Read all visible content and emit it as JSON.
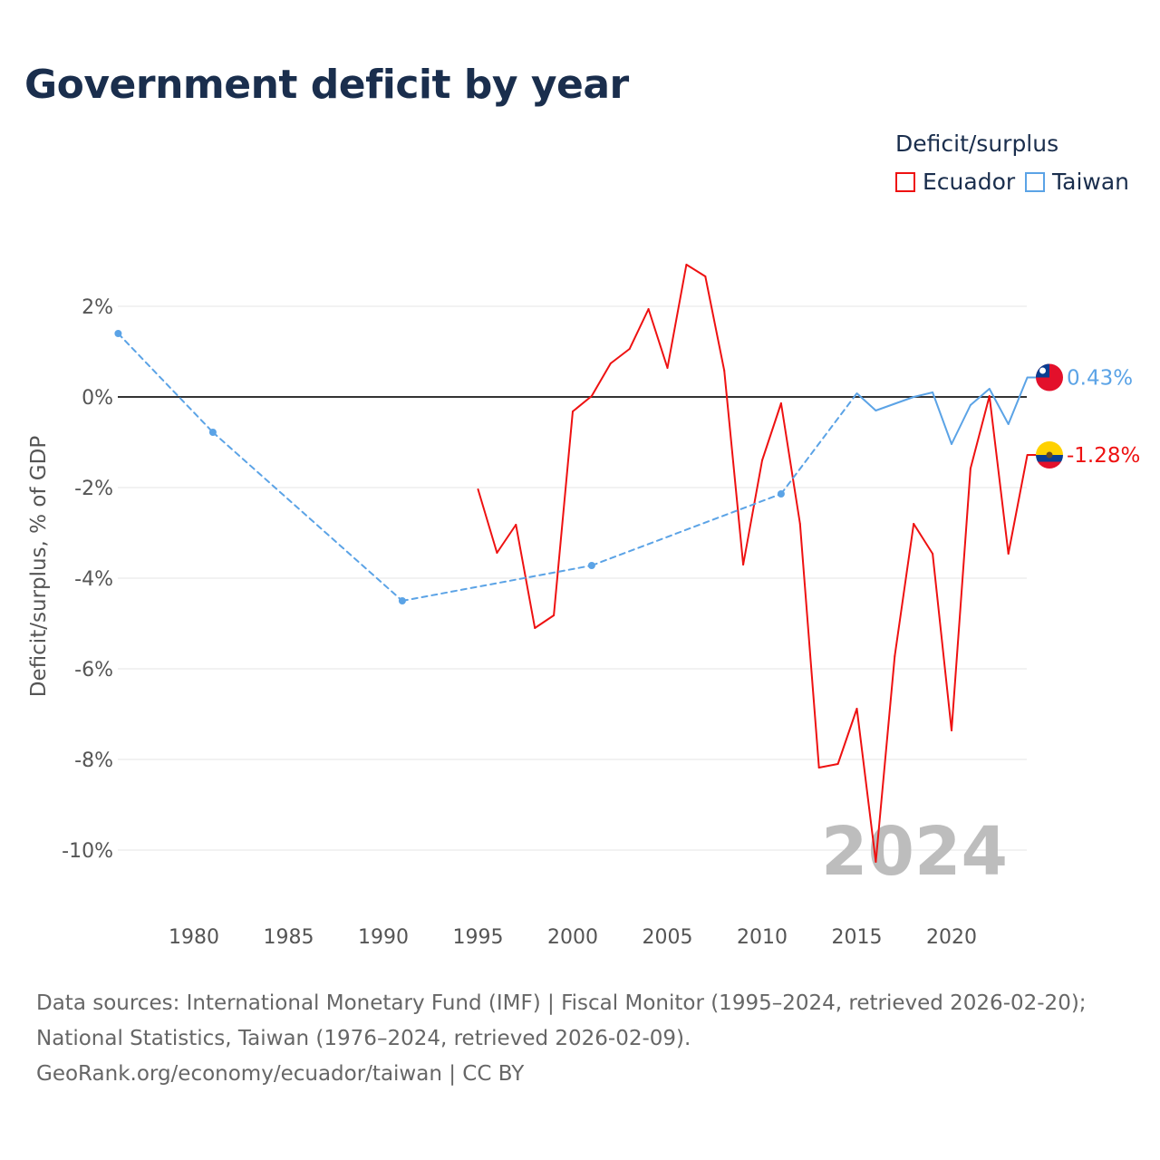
{
  "title": "Government deficit by year",
  "legend": {
    "title": "Deficit/surplus",
    "entries": [
      {
        "name": "Ecuador",
        "color": "#ee1111"
      },
      {
        "name": "Taiwan",
        "color": "#5ba3e6"
      }
    ]
  },
  "watermark_year": "2024",
  "footer": {
    "line1": "Data sources: International Monetary Fund (IMF) | Fiscal Monitor (1995–2024, retrieved 2026-02-20);",
    "line2": "National Statistics, Taiwan (1976–2024, retrieved 2026-02-09).",
    "line3": "GeoRank.org/economy/ecuador/taiwan | CC BY"
  },
  "chart_data": {
    "type": "line",
    "title": "Government deficit by year",
    "xlabel": "",
    "ylabel": "Deficit/surplus, % of GDP",
    "xlim": [
      1976,
      2024
    ],
    "ylim": [
      -10.9,
      3.6
    ],
    "xticks": [
      1980,
      1985,
      1990,
      1995,
      2000,
      2005,
      2010,
      2015,
      2020
    ],
    "yticks": [
      2,
      0,
      -2,
      -4,
      -6,
      -8,
      -10
    ],
    "ytick_labels": [
      "2%",
      "0%",
      "-2%",
      "-4%",
      "-6%",
      "-8%",
      "-10%"
    ],
    "grid": true,
    "legend_position": "top-right",
    "series": [
      {
        "name": "Ecuador",
        "color": "#ee1111",
        "end_label": "-1.28%",
        "x": [
          1995,
          1996,
          1997,
          1998,
          1999,
          2000,
          2001,
          2002,
          2003,
          2004,
          2005,
          2006,
          2007,
          2008,
          2009,
          2010,
          2011,
          2012,
          2013,
          2014,
          2015,
          2016,
          2017,
          2018,
          2019,
          2020,
          2021,
          2022,
          2023,
          2024
        ],
        "y": [
          -2.04,
          -3.44,
          -2.82,
          -5.1,
          -4.82,
          -0.32,
          0.02,
          0.74,
          1.06,
          1.94,
          0.64,
          2.92,
          2.66,
          0.58,
          -3.7,
          -1.4,
          -0.14,
          -2.8,
          -8.18,
          -8.1,
          -6.88,
          -10.26,
          -5.72,
          -2.8,
          -3.46,
          -7.36,
          -1.58,
          0.02,
          -3.46,
          -1.28
        ]
      },
      {
        "name": "Taiwan",
        "color": "#5ba3e6",
        "end_label": "0.43%",
        "x": [
          1976,
          1981,
          1991,
          2001,
          2011,
          2015,
          2016,
          2017,
          2018,
          2019,
          2020,
          2021,
          2022,
          2023,
          2024
        ],
        "y": [
          1.4,
          -0.78,
          -4.5,
          -3.72,
          -2.14,
          0.08,
          -0.3,
          -0.15,
          0.0,
          0.1,
          -1.04,
          -0.18,
          0.18,
          -0.6,
          0.43
        ]
      }
    ]
  }
}
